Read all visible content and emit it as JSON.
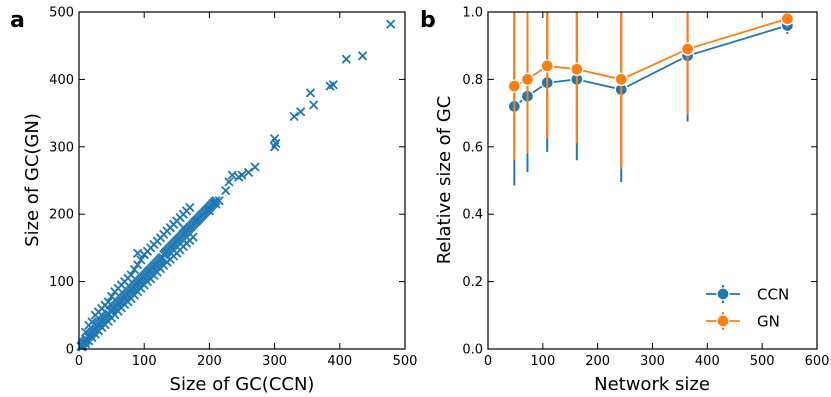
{
  "chart_data": [
    {
      "type": "scatter",
      "panel_label": "a",
      "xlabel": "Size of GC(CCN)",
      "ylabel": "Size of GC(GN)",
      "xlim": [
        0,
        500
      ],
      "ylim": [
        0,
        500
      ],
      "xticks": [
        0,
        100,
        200,
        300,
        400,
        500
      ],
      "yticks": [
        0,
        100,
        200,
        300,
        400,
        500
      ],
      "marker": "x",
      "color": "#1f77b4",
      "points": [
        [
          3,
          4
        ],
        [
          5,
          6
        ],
        [
          6,
          9
        ],
        [
          8,
          10
        ],
        [
          10,
          12
        ],
        [
          12,
          14
        ],
        [
          14,
          18
        ],
        [
          16,
          20
        ],
        [
          18,
          22
        ],
        [
          20,
          24
        ],
        [
          22,
          26
        ],
        [
          24,
          28
        ],
        [
          26,
          30
        ],
        [
          28,
          34
        ],
        [
          30,
          36
        ],
        [
          32,
          38
        ],
        [
          34,
          40
        ],
        [
          36,
          42
        ],
        [
          38,
          44
        ],
        [
          40,
          46
        ],
        [
          42,
          48
        ],
        [
          44,
          50
        ],
        [
          46,
          52
        ],
        [
          48,
          56
        ],
        [
          50,
          58
        ],
        [
          52,
          60
        ],
        [
          54,
          62
        ],
        [
          56,
          64
        ],
        [
          58,
          66
        ],
        [
          60,
          68
        ],
        [
          62,
          70
        ],
        [
          64,
          72
        ],
        [
          66,
          74
        ],
        [
          68,
          76
        ],
        [
          70,
          78
        ],
        [
          72,
          80
        ],
        [
          74,
          82
        ],
        [
          76,
          84
        ],
        [
          78,
          86
        ],
        [
          80,
          88
        ],
        [
          82,
          90
        ],
        [
          84,
          92
        ],
        [
          86,
          94
        ],
        [
          88,
          96
        ],
        [
          90,
          98
        ],
        [
          92,
          100
        ],
        [
          94,
          102
        ],
        [
          96,
          104
        ],
        [
          98,
          106
        ],
        [
          100,
          108
        ],
        [
          102,
          110
        ],
        [
          104,
          112
        ],
        [
          106,
          114
        ],
        [
          108,
          116
        ],
        [
          110,
          118
        ],
        [
          112,
          120
        ],
        [
          114,
          122
        ],
        [
          116,
          124
        ],
        [
          118,
          126
        ],
        [
          120,
          128
        ],
        [
          122,
          130
        ],
        [
          124,
          132
        ],
        [
          126,
          134
        ],
        [
          128,
          136
        ],
        [
          130,
          140
        ],
        [
          132,
          142
        ],
        [
          134,
          144
        ],
        [
          136,
          146
        ],
        [
          138,
          148
        ],
        [
          140,
          150
        ],
        [
          142,
          152
        ],
        [
          144,
          154
        ],
        [
          146,
          156
        ],
        [
          148,
          158
        ],
        [
          150,
          160
        ],
        [
          152,
          162
        ],
        [
          154,
          164
        ],
        [
          156,
          166
        ],
        [
          158,
          168
        ],
        [
          160,
          170
        ],
        [
          162,
          172
        ],
        [
          164,
          174
        ],
        [
          166,
          176
        ],
        [
          168,
          178
        ],
        [
          170,
          180
        ],
        [
          172,
          182
        ],
        [
          174,
          184
        ],
        [
          176,
          186
        ],
        [
          178,
          188
        ],
        [
          180,
          190
        ],
        [
          182,
          192
        ],
        [
          184,
          194
        ],
        [
          186,
          196
        ],
        [
          188,
          198
        ],
        [
          190,
          200
        ],
        [
          192,
          202
        ],
        [
          194,
          204
        ],
        [
          196,
          206
        ],
        [
          198,
          208
        ],
        [
          200,
          210
        ],
        [
          202,
          212
        ],
        [
          204,
          214
        ],
        [
          206,
          216
        ],
        [
          208,
          218
        ],
        [
          210,
          220
        ],
        [
          10,
          25
        ],
        [
          15,
          35
        ],
        [
          20,
          40
        ],
        [
          25,
          50
        ],
        [
          30,
          55
        ],
        [
          35,
          60
        ],
        [
          40,
          65
        ],
        [
          45,
          70
        ],
        [
          50,
          78
        ],
        [
          55,
          85
        ],
        [
          60,
          90
        ],
        [
          65,
          95
        ],
        [
          70,
          100
        ],
        [
          75,
          105
        ],
        [
          80,
          110
        ],
        [
          85,
          118
        ],
        [
          90,
          125
        ],
        [
          95,
          132
        ],
        [
          100,
          140
        ],
        [
          105,
          145
        ],
        [
          110,
          150
        ],
        [
          115,
          155
        ],
        [
          120,
          160
        ],
        [
          125,
          165
        ],
        [
          130,
          170
        ],
        [
          135,
          175
        ],
        [
          140,
          180
        ],
        [
          145,
          185
        ],
        [
          150,
          190
        ],
        [
          155,
          195
        ],
        [
          160,
          200
        ],
        [
          165,
          205
        ],
        [
          170,
          210
        ],
        [
          5,
          3
        ],
        [
          10,
          8
        ],
        [
          15,
          12
        ],
        [
          20,
          17
        ],
        [
          25,
          22
        ],
        [
          30,
          27
        ],
        [
          35,
          32
        ],
        [
          40,
          36
        ],
        [
          45,
          41
        ],
        [
          50,
          46
        ],
        [
          55,
          51
        ],
        [
          60,
          56
        ],
        [
          65,
          61
        ],
        [
          70,
          66
        ],
        [
          75,
          70
        ],
        [
          80,
          75
        ],
        [
          85,
          80
        ],
        [
          90,
          85
        ],
        [
          95,
          90
        ],
        [
          100,
          95
        ],
        [
          105,
          100
        ],
        [
          110,
          104
        ],
        [
          115,
          109
        ],
        [
          120,
          114
        ],
        [
          125,
          119
        ],
        [
          130,
          124
        ],
        [
          135,
          129
        ],
        [
          140,
          133
        ],
        [
          145,
          138
        ],
        [
          150,
          142
        ],
        [
          155,
          147
        ],
        [
          160,
          152
        ],
        [
          165,
          157
        ],
        [
          170,
          161
        ],
        [
          175,
          166
        ],
        [
          90,
          142
        ],
        [
          100,
          140
        ],
        [
          160,
          180
        ],
        [
          180,
          190
        ],
        [
          200,
          205
        ],
        [
          210,
          215
        ],
        [
          215,
          220
        ],
        [
          225,
          235
        ],
        [
          230,
          248
        ],
        [
          235,
          258
        ],
        [
          245,
          255
        ],
        [
          250,
          258
        ],
        [
          260,
          262
        ],
        [
          270,
          270
        ],
        [
          300,
          300
        ],
        [
          300,
          312
        ],
        [
          302,
          305
        ],
        [
          330,
          345
        ],
        [
          340,
          352
        ],
        [
          355,
          380
        ],
        [
          360,
          362
        ],
        [
          385,
          390
        ],
        [
          390,
          392
        ],
        [
          410,
          430
        ],
        [
          435,
          435
        ],
        [
          478,
          482
        ]
      ]
    },
    {
      "type": "line",
      "panel_label": "b",
      "xlabel": "Network size",
      "ylabel": "Relative size of GC",
      "xlim": [
        0,
        600
      ],
      "ylim": [
        0.0,
        1.0
      ],
      "xticks": [
        0,
        100,
        200,
        300,
        400,
        500,
        600
      ],
      "yticks": [
        "0.0",
        "0.2",
        "0.4",
        "0.6",
        "0.8",
        "1.0"
      ],
      "x": [
        48,
        72,
        108,
        162,
        243,
        364,
        546
      ],
      "legend_position": "lower right",
      "series": [
        {
          "name": "CCN",
          "color": "#1f77b4",
          "values": [
            0.72,
            0.75,
            0.79,
            0.8,
            0.77,
            0.87,
            0.96
          ],
          "err_low": [
            0.485,
            0.525,
            0.585,
            0.56,
            0.495,
            0.675,
            0.935
          ],
          "err_high": [
            1.0,
            1.0,
            1.0,
            1.0,
            1.0,
            1.0,
            0.98
          ]
        },
        {
          "name": "GN",
          "color": "#ff7f0e",
          "values": [
            0.78,
            0.8,
            0.84,
            0.83,
            0.8,
            0.89,
            0.98
          ],
          "err_low": [
            0.56,
            0.58,
            0.625,
            0.61,
            0.535,
            0.695,
            0.955
          ],
          "err_high": [
            1.0,
            1.0,
            1.0,
            1.0,
            1.0,
            1.0,
            0.995
          ]
        }
      ]
    }
  ]
}
